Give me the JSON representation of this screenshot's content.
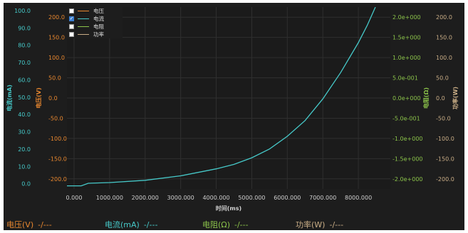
{
  "legend": [
    {
      "label": "电压",
      "color": "#e8872f",
      "checked": false
    },
    {
      "label": "电流",
      "color": "#46c9c9",
      "checked": true
    },
    {
      "label": "电阻",
      "color": "#8bc34a",
      "checked": false
    },
    {
      "label": "功率",
      "color": "#c9ad86",
      "checked": false
    }
  ],
  "readouts": [
    {
      "label": "电压(V)",
      "value": "-/---",
      "color": "#e8872f"
    },
    {
      "label": "电流(mA)",
      "value": "-/---",
      "color": "#46c9c9"
    },
    {
      "label": "电阻(Ω)",
      "value": "-/---",
      "color": "#8bc34a"
    },
    {
      "label": "功率(W)",
      "value": "-/---",
      "color": "#c9ad86"
    }
  ],
  "chart_data": {
    "type": "line",
    "xlabel": "时间(ms)",
    "xlim": [
      -200,
      8900
    ],
    "x_ticks": [
      "0.000",
      "1000.000",
      "2000.000",
      "3000.000",
      "4000.000",
      "5000.000",
      "6000.000",
      "7000.000",
      "8000.000"
    ],
    "x_tick_values": [
      0,
      1000,
      2000,
      3000,
      4000,
      5000,
      6000,
      7000,
      8000
    ],
    "grid": true,
    "axes": [
      {
        "id": "current",
        "label": "电流(mA)",
        "color": "#46c9c9",
        "side": "left",
        "ylim": [
          -3,
          102
        ],
        "ticks": [
          "100.0",
          "90.0",
          "80.0",
          "70.0",
          "60.0",
          "50.0",
          "40.0",
          "30.0",
          "20.0",
          "10.0",
          "0.0"
        ],
        "tick_values": [
          100,
          90,
          80,
          70,
          60,
          50,
          40,
          30,
          20,
          10,
          0
        ]
      },
      {
        "id": "voltage",
        "label": "电压(V)",
        "color": "#e8872f",
        "side": "left",
        "ylim": [
          -225,
          225
        ],
        "ticks": [
          "200.0",
          "150.0",
          "100.0",
          "50.0",
          "0.0",
          "-50.0",
          "-100.0",
          "-150.0",
          "-200.0"
        ],
        "tick_values": [
          200,
          150,
          100,
          50,
          0,
          -50,
          -100,
          -150,
          -200
        ]
      },
      {
        "id": "resistance",
        "label": "电阻(Ω)",
        "color": "#8bc34a",
        "side": "right",
        "ylim": [
          -2.25,
          2.25
        ],
        "ticks": [
          "2.0e+000",
          "1.5e+000",
          "1.0e+000",
          "5.0e-001",
          "0.0e+000",
          "-5.0e-001",
          "-1.0e+000",
          "-1.5e+000",
          "-2.0e+000"
        ],
        "tick_values": [
          2,
          1.5,
          1,
          0.5,
          0,
          -0.5,
          -1,
          -1.5,
          -2
        ]
      },
      {
        "id": "power",
        "label": "功率(W)",
        "color": "#c9ad86",
        "side": "right",
        "ylim": [
          -225,
          225
        ],
        "ticks": [
          "200.0",
          "150.0",
          "100.0",
          "50.0",
          "0.0",
          "-50.0",
          "-100.0",
          "-150.0",
          "-200.0"
        ],
        "tick_values": [
          200,
          150,
          100,
          50,
          0,
          -50,
          -100,
          -150,
          -200
        ]
      }
    ],
    "series": [
      {
        "name": "电流",
        "axis": "current",
        "color": "#46c9c9",
        "x": [
          -200,
          200,
          400,
          1000,
          2000,
          3000,
          4000,
          4500,
          5000,
          5500,
          6000,
          6500,
          7000,
          7500,
          8000,
          8250,
          8480
        ],
        "y": [
          -1.2,
          -1.2,
          0.3,
          0.7,
          2.0,
          4.6,
          8.6,
          11.2,
          15.0,
          20.1,
          27.4,
          36.5,
          49.0,
          64.2,
          81.5,
          91.5,
          102
        ]
      }
    ]
  }
}
